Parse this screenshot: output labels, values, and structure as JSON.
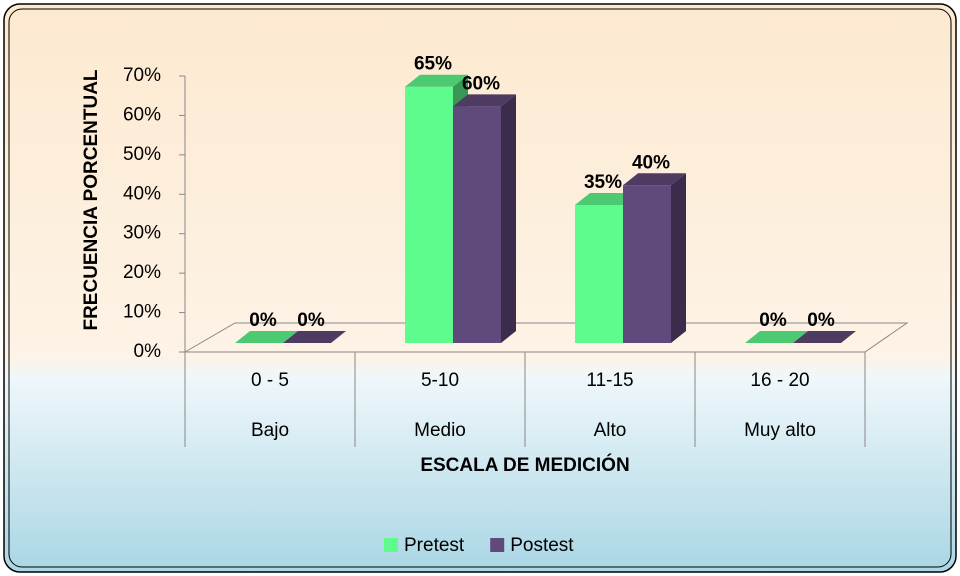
{
  "chart_data": {
    "type": "bar3d",
    "y_axis_label": "FRECUENCIA PORCENTUAL",
    "x_axis_label": "ESCALA DE MEDICIÓN",
    "categories": [
      "0 - 5",
      "5-10",
      "11-15",
      "16 - 20"
    ],
    "subcategories": [
      "Bajo",
      "Medio",
      "Alto",
      "Muy alto"
    ],
    "series": [
      {
        "name": "Pretest",
        "color": "#5efc8d",
        "values": [
          0,
          65,
          35,
          0
        ],
        "value_labels": [
          "0%",
          "65%",
          "35%",
          "0%"
        ]
      },
      {
        "name": "Postest",
        "color": "#604a7b",
        "values": [
          0,
          60,
          40,
          0
        ],
        "value_labels": [
          "0%",
          "60%",
          "40%",
          "0%"
        ]
      }
    ],
    "ylim": [
      0,
      70
    ],
    "yticks": [
      {
        "value": 0,
        "label": "0%"
      },
      {
        "value": 10,
        "label": "10%"
      },
      {
        "value": 20,
        "label": "20%"
      },
      {
        "value": 30,
        "label": "30%"
      },
      {
        "value": 40,
        "label": "40%"
      },
      {
        "value": 50,
        "label": "50%"
      },
      {
        "value": 60,
        "label": "60%"
      },
      {
        "value": 70,
        "label": "70%"
      }
    ],
    "legend": "bottom"
  }
}
